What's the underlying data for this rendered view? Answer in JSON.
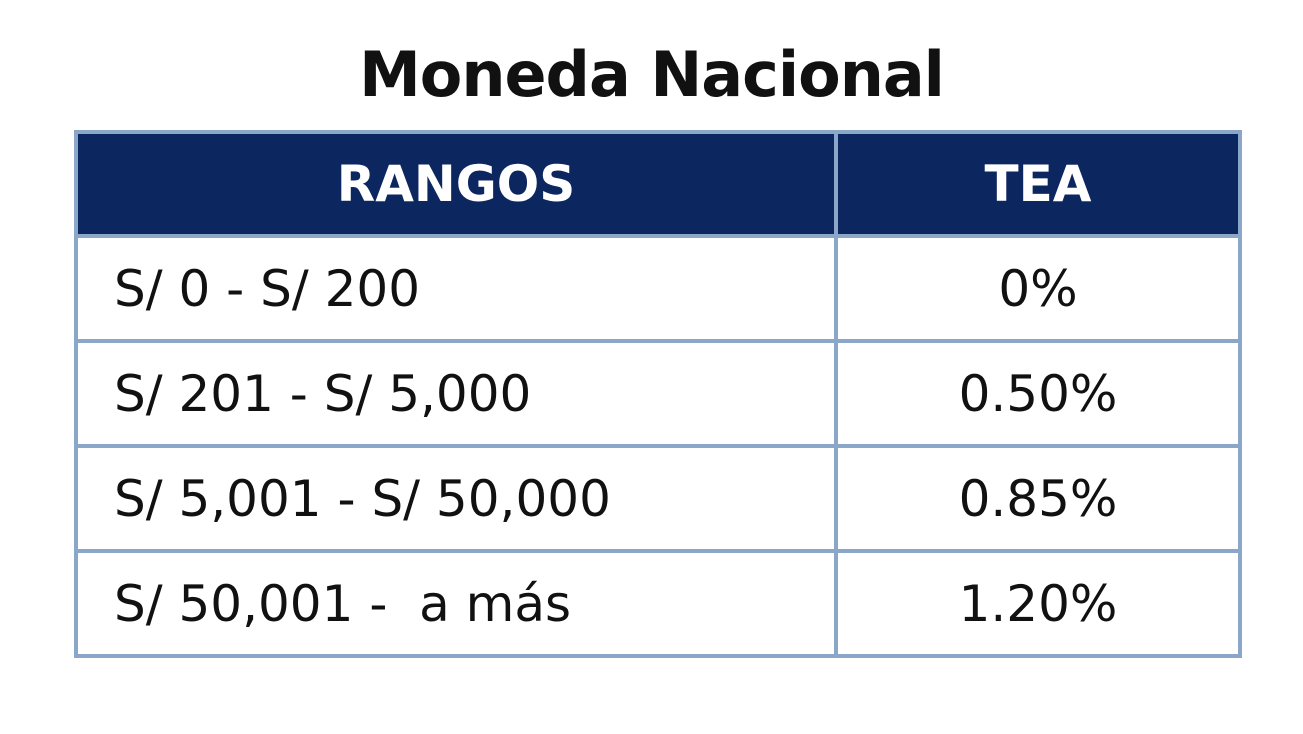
{
  "header": {
    "title": "Moneda Nacional"
  },
  "table": {
    "columns": [
      "RANGOS",
      "TEA"
    ],
    "rows": [
      [
        "S/ 0 - S/ 200",
        "0%"
      ],
      [
        "S/ 201 - S/ 5,000",
        "0.50%"
      ],
      [
        "S/ 5,001 - S/ 50,000",
        "0.85%"
      ],
      [
        "S/ 50,001 -  a más",
        "1.20%"
      ]
    ]
  }
}
